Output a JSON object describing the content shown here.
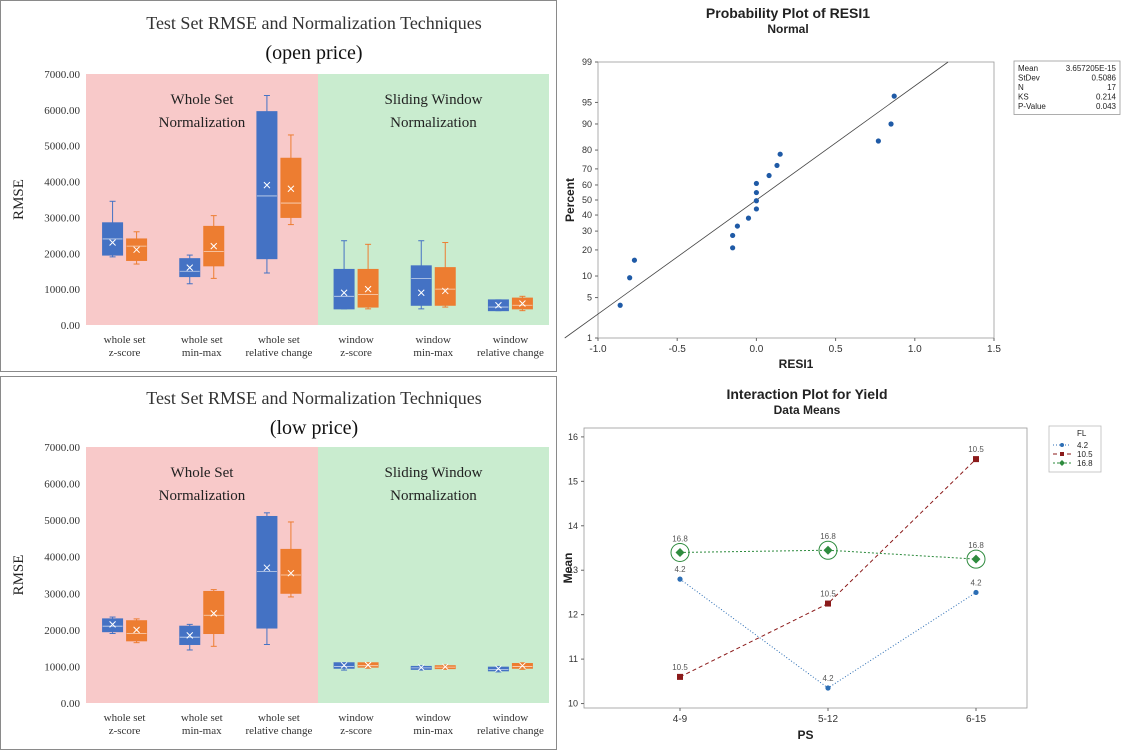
{
  "chart_data": [
    {
      "type": "box",
      "title": "Test Set RMSE and Normalization Techniques",
      "subtitle": "(open price)",
      "ylabel": "RMSE",
      "ylim": [
        0,
        7000
      ],
      "yticks": [
        "0.00",
        "1000.00",
        "2000.00",
        "3000.00",
        "4000.00",
        "5000.00",
        "6000.00",
        "7000.00"
      ],
      "regions": [
        {
          "label_line1": "Whole Set",
          "label_line2": "Normalization",
          "color": "#f8c9c9"
        },
        {
          "label_line1": "Sliding Window",
          "label_line2": "Normalization",
          "color": "#c9eccf"
        }
      ],
      "categories": [
        [
          "whole set",
          "z-score"
        ],
        [
          "whole set",
          "min-max"
        ],
        [
          "whole set",
          "relative  change"
        ],
        [
          "window",
          "z-score"
        ],
        [
          "window",
          "min-max"
        ],
        [
          "window",
          "relative change"
        ]
      ],
      "series_colors": [
        "#4472c4",
        "#ed7d31"
      ],
      "boxes": [
        [
          [
            1900,
            1950,
            2400,
            2850,
            3450,
            2300
          ],
          [
            1700,
            1800,
            2200,
            2400,
            2600,
            2100
          ]
        ],
        [
          [
            1150,
            1350,
            1500,
            1850,
            1950,
            1600
          ],
          [
            1300,
            1650,
            2050,
            2750,
            3050,
            2200
          ]
        ],
        [
          [
            1450,
            1850,
            3600,
            5950,
            6400,
            3900
          ],
          [
            2800,
            3000,
            3400,
            4650,
            5300,
            3800
          ]
        ],
        [
          [
            450,
            450,
            800,
            1550,
            2350,
            900
          ],
          [
            450,
            500,
            850,
            1550,
            2250,
            1000
          ]
        ],
        [
          [
            450,
            550,
            1300,
            1650,
            2350,
            900
          ],
          [
            500,
            550,
            1000,
            1600,
            2300,
            950
          ]
        ],
        [
          [
            400,
            400,
            500,
            700,
            700,
            550
          ],
          [
            400,
            450,
            550,
            750,
            800,
            600
          ]
        ]
      ]
    },
    {
      "type": "box",
      "title": "Test Set RMSE and Normalization Techniques",
      "subtitle": "(low price)",
      "ylabel": "RMSE",
      "ylim": [
        0,
        7000
      ],
      "yticks": [
        "0.00",
        "1000.00",
        "2000.00",
        "3000.00",
        "4000.00",
        "5000.00",
        "6000.00",
        "7000.00"
      ],
      "regions": [
        {
          "label_line1": "Whole Set",
          "label_line2": "Normalization",
          "color": "#f8c9c9"
        },
        {
          "label_line1": "Sliding Window",
          "label_line2": "Normalization",
          "color": "#c9eccf"
        }
      ],
      "categories": [
        [
          "whole set",
          "z-score"
        ],
        [
          "whole set",
          "min-max"
        ],
        [
          "whole set",
          "relative change"
        ],
        [
          "window",
          "z-score"
        ],
        [
          "window",
          "min-max"
        ],
        [
          "window",
          "relative  change"
        ]
      ],
      "series_colors": [
        "#4472c4",
        "#ed7d31"
      ],
      "boxes": [
        [
          [
            1900,
            1950,
            2100,
            2300,
            2350,
            2150
          ],
          [
            1650,
            1700,
            1900,
            2250,
            2300,
            2000
          ]
        ],
        [
          [
            1450,
            1600,
            1800,
            2100,
            2150,
            1850
          ],
          [
            1550,
            1900,
            2400,
            3050,
            3100,
            2450
          ]
        ],
        [
          [
            1600,
            2050,
            3600,
            5100,
            5200,
            3700
          ],
          [
            2900,
            3000,
            3500,
            4200,
            4950,
            3550
          ]
        ],
        [
          [
            900,
            950,
            1000,
            1100,
            1100,
            1030
          ],
          [
            950,
            980,
            1020,
            1100,
            1100,
            1040
          ]
        ],
        [
          [
            900,
            920,
            960,
            1000,
            1020,
            970
          ],
          [
            920,
            940,
            980,
            1020,
            1040,
            990
          ]
        ],
        [
          [
            850,
            880,
            920,
            980,
            1000,
            940
          ],
          [
            920,
            950,
            1000,
            1080,
            1100,
            1020
          ]
        ]
      ]
    },
    {
      "type": "scatter",
      "title": "Probability Plot of RESI1",
      "subtitle": "Normal",
      "xlabel": "RESI1",
      "ylabel": "Percent",
      "xlim": [
        -1.0,
        1.5
      ],
      "xticks": [
        -1.0,
        -0.5,
        0.0,
        0.5,
        1.0,
        1.5
      ],
      "xtick_labels": [
        "-1.0",
        "-0.5",
        "0.0",
        "0.5",
        "1.0",
        "1.5"
      ],
      "yticks": [
        1,
        5,
        10,
        20,
        30,
        40,
        50,
        60,
        70,
        80,
        90,
        95,
        99
      ],
      "color": "#1f5aa6",
      "fit_line": [
        [
          -1.21,
          1
        ],
        [
          1.21,
          99
        ]
      ],
      "points": [
        [
          -0.86,
          3.8
        ],
        [
          -0.8,
          9.5
        ],
        [
          -0.77,
          15.5
        ],
        [
          -0.15,
          21
        ],
        [
          -0.15,
          27.5
        ],
        [
          -0.12,
          33
        ],
        [
          -0.05,
          38
        ],
        [
          0.0,
          44
        ],
        [
          0.0,
          49.5
        ],
        [
          0.0,
          55
        ],
        [
          0.0,
          61
        ],
        [
          0.08,
          66
        ],
        [
          0.13,
          72
        ],
        [
          0.15,
          78
        ],
        [
          0.77,
          84
        ],
        [
          0.85,
          90
        ],
        [
          0.87,
          96
        ]
      ],
      "stats": [
        [
          "Mean",
          "3.657205E-15"
        ],
        [
          "StDev",
          "0.5086"
        ],
        [
          "N",
          "17"
        ],
        [
          "KS",
          "0.214"
        ],
        [
          "P-Value",
          "0.043"
        ]
      ]
    },
    {
      "type": "line",
      "title": "Interaction Plot for Yield",
      "subtitle": "Data Means",
      "xlabel": "PS",
      "ylabel": "Mean",
      "categories": [
        "4-9",
        "5-12",
        "6-15"
      ],
      "ylim": [
        9.9,
        16.2
      ],
      "yticks": [
        10,
        11,
        12,
        13,
        14,
        15,
        16
      ],
      "legend_title": "FL",
      "series": [
        {
          "name": "4.2",
          "values": [
            12.8,
            10.35,
            12.5
          ],
          "labels": [
            "4.2",
            "4.2",
            "4.2"
          ],
          "color": "#2c6eb5",
          "marker": "circle",
          "dash": "1,2"
        },
        {
          "name": "10.5",
          "values": [
            10.6,
            12.25,
            15.5
          ],
          "labels": [
            "10.5",
            "10.5",
            "10.5"
          ],
          "color": "#8b1a1a",
          "marker": "square",
          "dash": "4,3"
        },
        {
          "name": "16.8",
          "values": [
            13.4,
            13.45,
            13.25
          ],
          "labels": [
            "16.8",
            "16.8",
            "16.8"
          ],
          "color": "#2e8b3e",
          "marker": "diamond",
          "dash": "2,2"
        }
      ]
    }
  ]
}
